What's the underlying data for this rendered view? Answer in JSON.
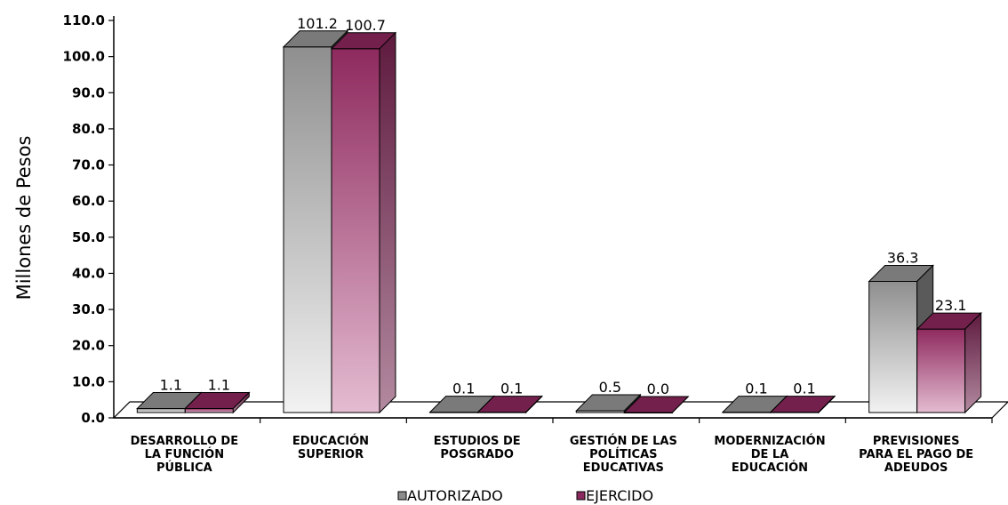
{
  "chart_data": {
    "type": "bar",
    "ylabel": "Millones de Pesos",
    "ylim": [
      0,
      110
    ],
    "yticks": [
      "0.0",
      "10.0",
      "20.0",
      "30.0",
      "40.0",
      "50.0",
      "60.0",
      "70.0",
      "80.0",
      "90.0",
      "100.0",
      "110.0"
    ],
    "categories": [
      [
        "DESARROLLO DE",
        "LA FUNCIÓN",
        "PÚBLICA"
      ],
      [
        "EDUCACIÓN",
        "SUPERIOR"
      ],
      [
        "ESTUDIOS DE",
        "POSGRADO"
      ],
      [
        "GESTIÓN DE LAS",
        "POLÍTICAS",
        "EDUCATIVAS"
      ],
      [
        "MODERNIZACIÓN",
        "DE LA",
        "EDUCACIÓN"
      ],
      [
        "PREVISIONES",
        "PARA EL PAGO DE",
        "ADEUDOS"
      ]
    ],
    "series": [
      {
        "name": "AUTORIZADO",
        "values": [
          1.1,
          101.2,
          0.1,
          0.5,
          0.1,
          36.3
        ],
        "labels": [
          "1.1",
          "101.2",
          "0.1",
          "0.5",
          "0.1",
          "36.3"
        ],
        "color": "#8c8c8c"
      },
      {
        "name": "EJERCIDO",
        "values": [
          1.1,
          100.7,
          0.1,
          0.0,
          0.1,
          23.1
        ],
        "labels": [
          "1.1",
          "100.7",
          "0.1",
          "0.0",
          "0.1",
          "23.1"
        ],
        "color": "#8b2a5e"
      }
    ],
    "grid": false,
    "legend": "bottom",
    "style": "3d-gradient"
  }
}
